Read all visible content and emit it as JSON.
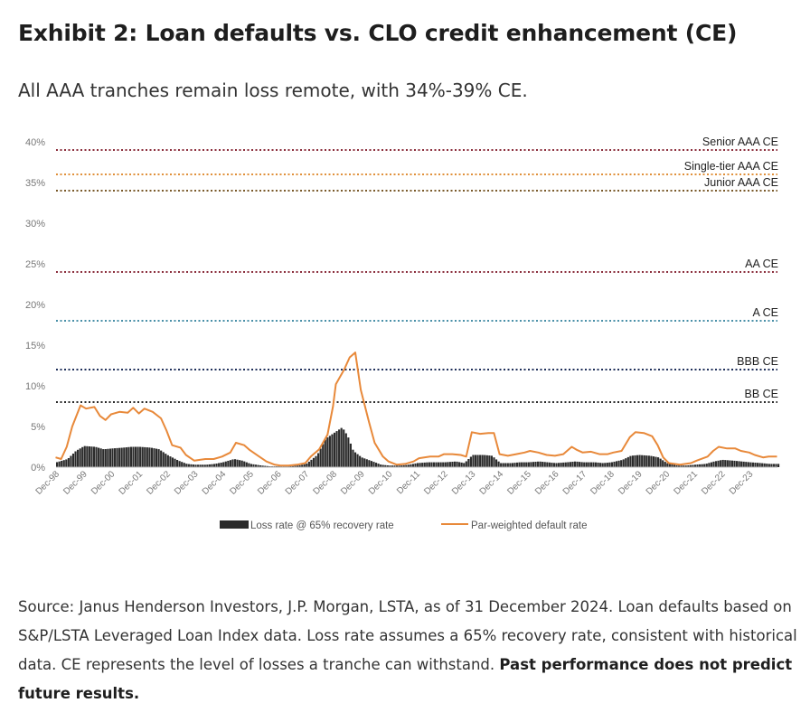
{
  "title": "Exhibit 2: Loan defaults vs. CLO credit enhancement (CE)",
  "subtitle": "All AAA tranches remain loss remote, with 34%-39% CE.",
  "source_text": "Source: Janus Henderson Investors, J.P. Morgan, LSTA, as of 31 December 2024. Loan defaults based on S&P/LSTA Leveraged Loan Index data. Loss rate assumes a 65% recovery rate, consistent with historical data. CE represents the level of losses a tranche can withstand.",
  "source_bold": "Past performance does not predict future results.",
  "chart_data": {
    "type": "bar+line",
    "x_start": 1998.917,
    "x_end": 2024.917,
    "ylim": [
      0,
      40
    ],
    "yticks": [
      "0%",
      "5%",
      "10%",
      "15%",
      "20%",
      "25%",
      "30%",
      "35%",
      "40%"
    ],
    "xticks": [
      "Dec-98",
      "Dec-99",
      "Dec-00",
      "Dec-01",
      "Dec-02",
      "Dec-03",
      "Dec-04",
      "Dec-05",
      "Dec-06",
      "Dec-07",
      "Dec-08",
      "Dec-09",
      "Dec-10",
      "Dec-11",
      "Dec-12",
      "Dec-13",
      "Dec-14",
      "Dec-15",
      "Dec-16",
      "Dec-17",
      "Dec-18",
      "Dec-19",
      "Dec-20",
      "Dec-21",
      "Dec-22",
      "Dec-23"
    ],
    "reference_lines": [
      {
        "label": "Senior AAA CE",
        "value": 39,
        "color": "#8b2e3c"
      },
      {
        "label": "Single-tier AAA CE",
        "value": 36,
        "color": "#e0903a"
      },
      {
        "label": "Junior AAA CE",
        "value": 34,
        "color": "#7a5a2a"
      },
      {
        "label": "AA CE",
        "value": 24,
        "color": "#8b2e3c"
      },
      {
        "label": "A CE",
        "value": 18,
        "color": "#4a90a8"
      },
      {
        "label": "BBB CE",
        "value": 12,
        "color": "#1f2f5a"
      },
      {
        "label": "BB CE",
        "value": 8,
        "color": "#2a2a2a"
      }
    ],
    "series": [
      {
        "name": "Loss rate @ 65% recovery rate",
        "kind": "bar",
        "color": "#2b2b2b",
        "points": [
          [
            1998.9,
            0.6
          ],
          [
            1999.3,
            1.0
          ],
          [
            1999.6,
            2.0
          ],
          [
            1999.9,
            2.6
          ],
          [
            2000.3,
            2.5
          ],
          [
            2000.6,
            2.2
          ],
          [
            2000.9,
            2.3
          ],
          [
            2001.3,
            2.4
          ],
          [
            2001.6,
            2.5
          ],
          [
            2001.9,
            2.5
          ],
          [
            2002.3,
            2.4
          ],
          [
            2002.6,
            2.2
          ],
          [
            2002.9,
            1.5
          ],
          [
            2003.3,
            0.8
          ],
          [
            2003.6,
            0.4
          ],
          [
            2003.9,
            0.3
          ],
          [
            2004.3,
            0.3
          ],
          [
            2004.6,
            0.4
          ],
          [
            2004.9,
            0.6
          ],
          [
            2005.3,
            1.0
          ],
          [
            2005.6,
            0.8
          ],
          [
            2005.9,
            0.4
          ],
          [
            2006.3,
            0.2
          ],
          [
            2006.6,
            0.1
          ],
          [
            2006.9,
            0.1
          ],
          [
            2007.3,
            0.1
          ],
          [
            2007.6,
            0.2
          ],
          [
            2007.9,
            0.4
          ],
          [
            2008.3,
            1.5
          ],
          [
            2008.6,
            3.5
          ],
          [
            2008.9,
            4.2
          ],
          [
            2009.2,
            4.9
          ],
          [
            2009.4,
            3.8
          ],
          [
            2009.6,
            2.0
          ],
          [
            2009.9,
            1.2
          ],
          [
            2010.3,
            0.7
          ],
          [
            2010.6,
            0.3
          ],
          [
            2010.9,
            0.2
          ],
          [
            2011.3,
            0.2
          ],
          [
            2011.6,
            0.3
          ],
          [
            2011.9,
            0.5
          ],
          [
            2012.3,
            0.6
          ],
          [
            2012.6,
            0.6
          ],
          [
            2012.9,
            0.6
          ],
          [
            2013.3,
            0.7
          ],
          [
            2013.6,
            0.5
          ],
          [
            2013.9,
            1.5
          ],
          [
            2014.3,
            1.5
          ],
          [
            2014.6,
            1.4
          ],
          [
            2014.9,
            0.5
          ],
          [
            2015.3,
            0.5
          ],
          [
            2015.6,
            0.6
          ],
          [
            2015.9,
            0.6
          ],
          [
            2016.3,
            0.7
          ],
          [
            2016.6,
            0.6
          ],
          [
            2016.9,
            0.5
          ],
          [
            2017.3,
            0.6
          ],
          [
            2017.6,
            0.7
          ],
          [
            2017.9,
            0.6
          ],
          [
            2018.3,
            0.6
          ],
          [
            2018.6,
            0.5
          ],
          [
            2018.9,
            0.6
          ],
          [
            2019.3,
            0.9
          ],
          [
            2019.6,
            1.4
          ],
          [
            2019.9,
            1.5
          ],
          [
            2020.3,
            1.4
          ],
          [
            2020.6,
            1.2
          ],
          [
            2020.9,
            0.5
          ],
          [
            2021.3,
            0.2
          ],
          [
            2021.6,
            0.2
          ],
          [
            2021.9,
            0.3
          ],
          [
            2022.3,
            0.4
          ],
          [
            2022.6,
            0.7
          ],
          [
            2022.9,
            0.9
          ],
          [
            2023.3,
            0.8
          ],
          [
            2023.6,
            0.7
          ],
          [
            2023.9,
            0.6
          ],
          [
            2024.3,
            0.5
          ],
          [
            2024.6,
            0.4
          ],
          [
            2024.9,
            0.4
          ]
        ]
      },
      {
        "name": "Par-weighted default rate",
        "kind": "line",
        "color": "#e8893a",
        "points": [
          [
            1998.9,
            1.2
          ],
          [
            1999.1,
            1.0
          ],
          [
            1999.3,
            2.5
          ],
          [
            1999.5,
            5.0
          ],
          [
            1999.8,
            7.6
          ],
          [
            2000.0,
            7.2
          ],
          [
            2000.3,
            7.4
          ],
          [
            2000.5,
            6.3
          ],
          [
            2000.7,
            5.8
          ],
          [
            2000.9,
            6.5
          ],
          [
            2001.2,
            6.8
          ],
          [
            2001.5,
            6.7
          ],
          [
            2001.7,
            7.3
          ],
          [
            2001.9,
            6.6
          ],
          [
            2002.1,
            7.2
          ],
          [
            2002.4,
            6.8
          ],
          [
            2002.7,
            6.0
          ],
          [
            2002.9,
            4.5
          ],
          [
            2003.1,
            2.7
          ],
          [
            2003.4,
            2.4
          ],
          [
            2003.6,
            1.5
          ],
          [
            2003.9,
            0.8
          ],
          [
            2004.3,
            1.0
          ],
          [
            2004.6,
            1.0
          ],
          [
            2004.9,
            1.3
          ],
          [
            2005.2,
            1.8
          ],
          [
            2005.4,
            3.0
          ],
          [
            2005.7,
            2.7
          ],
          [
            2005.9,
            2.1
          ],
          [
            2006.2,
            1.4
          ],
          [
            2006.5,
            0.7
          ],
          [
            2006.8,
            0.3
          ],
          [
            2007.0,
            0.2
          ],
          [
            2007.3,
            0.2
          ],
          [
            2007.6,
            0.3
          ],
          [
            2007.9,
            0.5
          ],
          [
            2008.1,
            1.3
          ],
          [
            2008.4,
            2.2
          ],
          [
            2008.7,
            4.0
          ],
          [
            2008.9,
            7.5
          ],
          [
            2009.0,
            10.2
          ],
          [
            2009.3,
            12.0
          ],
          [
            2009.5,
            13.5
          ],
          [
            2009.7,
            14.1
          ],
          [
            2009.9,
            9.5
          ],
          [
            2010.2,
            5.5
          ],
          [
            2010.4,
            3.0
          ],
          [
            2010.7,
            1.3
          ],
          [
            2010.9,
            0.7
          ],
          [
            2011.2,
            0.3
          ],
          [
            2011.5,
            0.4
          ],
          [
            2011.8,
            0.7
          ],
          [
            2012.0,
            1.1
          ],
          [
            2012.4,
            1.3
          ],
          [
            2012.7,
            1.3
          ],
          [
            2012.9,
            1.6
          ],
          [
            2013.2,
            1.6
          ],
          [
            2013.5,
            1.5
          ],
          [
            2013.7,
            1.3
          ],
          [
            2013.9,
            4.3
          ],
          [
            2014.2,
            4.1
          ],
          [
            2014.5,
            4.2
          ],
          [
            2014.7,
            4.2
          ],
          [
            2014.9,
            1.6
          ],
          [
            2015.2,
            1.4
          ],
          [
            2015.5,
            1.6
          ],
          [
            2015.8,
            1.8
          ],
          [
            2016.0,
            2.0
          ],
          [
            2016.3,
            1.8
          ],
          [
            2016.6,
            1.5
          ],
          [
            2016.9,
            1.4
          ],
          [
            2017.2,
            1.6
          ],
          [
            2017.5,
            2.5
          ],
          [
            2017.7,
            2.1
          ],
          [
            2017.9,
            1.8
          ],
          [
            2018.2,
            1.9
          ],
          [
            2018.5,
            1.6
          ],
          [
            2018.8,
            1.6
          ],
          [
            2019.0,
            1.8
          ],
          [
            2019.3,
            2.0
          ],
          [
            2019.6,
            3.7
          ],
          [
            2019.8,
            4.3
          ],
          [
            2020.1,
            4.2
          ],
          [
            2020.4,
            3.8
          ],
          [
            2020.6,
            2.7
          ],
          [
            2020.8,
            1.2
          ],
          [
            2021.0,
            0.5
          ],
          [
            2021.4,
            0.3
          ],
          [
            2021.8,
            0.5
          ],
          [
            2022.0,
            0.8
          ],
          [
            2022.4,
            1.3
          ],
          [
            2022.6,
            2.0
          ],
          [
            2022.8,
            2.5
          ],
          [
            2023.1,
            2.3
          ],
          [
            2023.4,
            2.3
          ],
          [
            2023.6,
            2.0
          ],
          [
            2023.9,
            1.8
          ],
          [
            2024.1,
            1.5
          ],
          [
            2024.4,
            1.2
          ],
          [
            2024.6,
            1.3
          ],
          [
            2024.9,
            1.3
          ]
        ]
      }
    ],
    "legend_position": "bottom-center"
  }
}
